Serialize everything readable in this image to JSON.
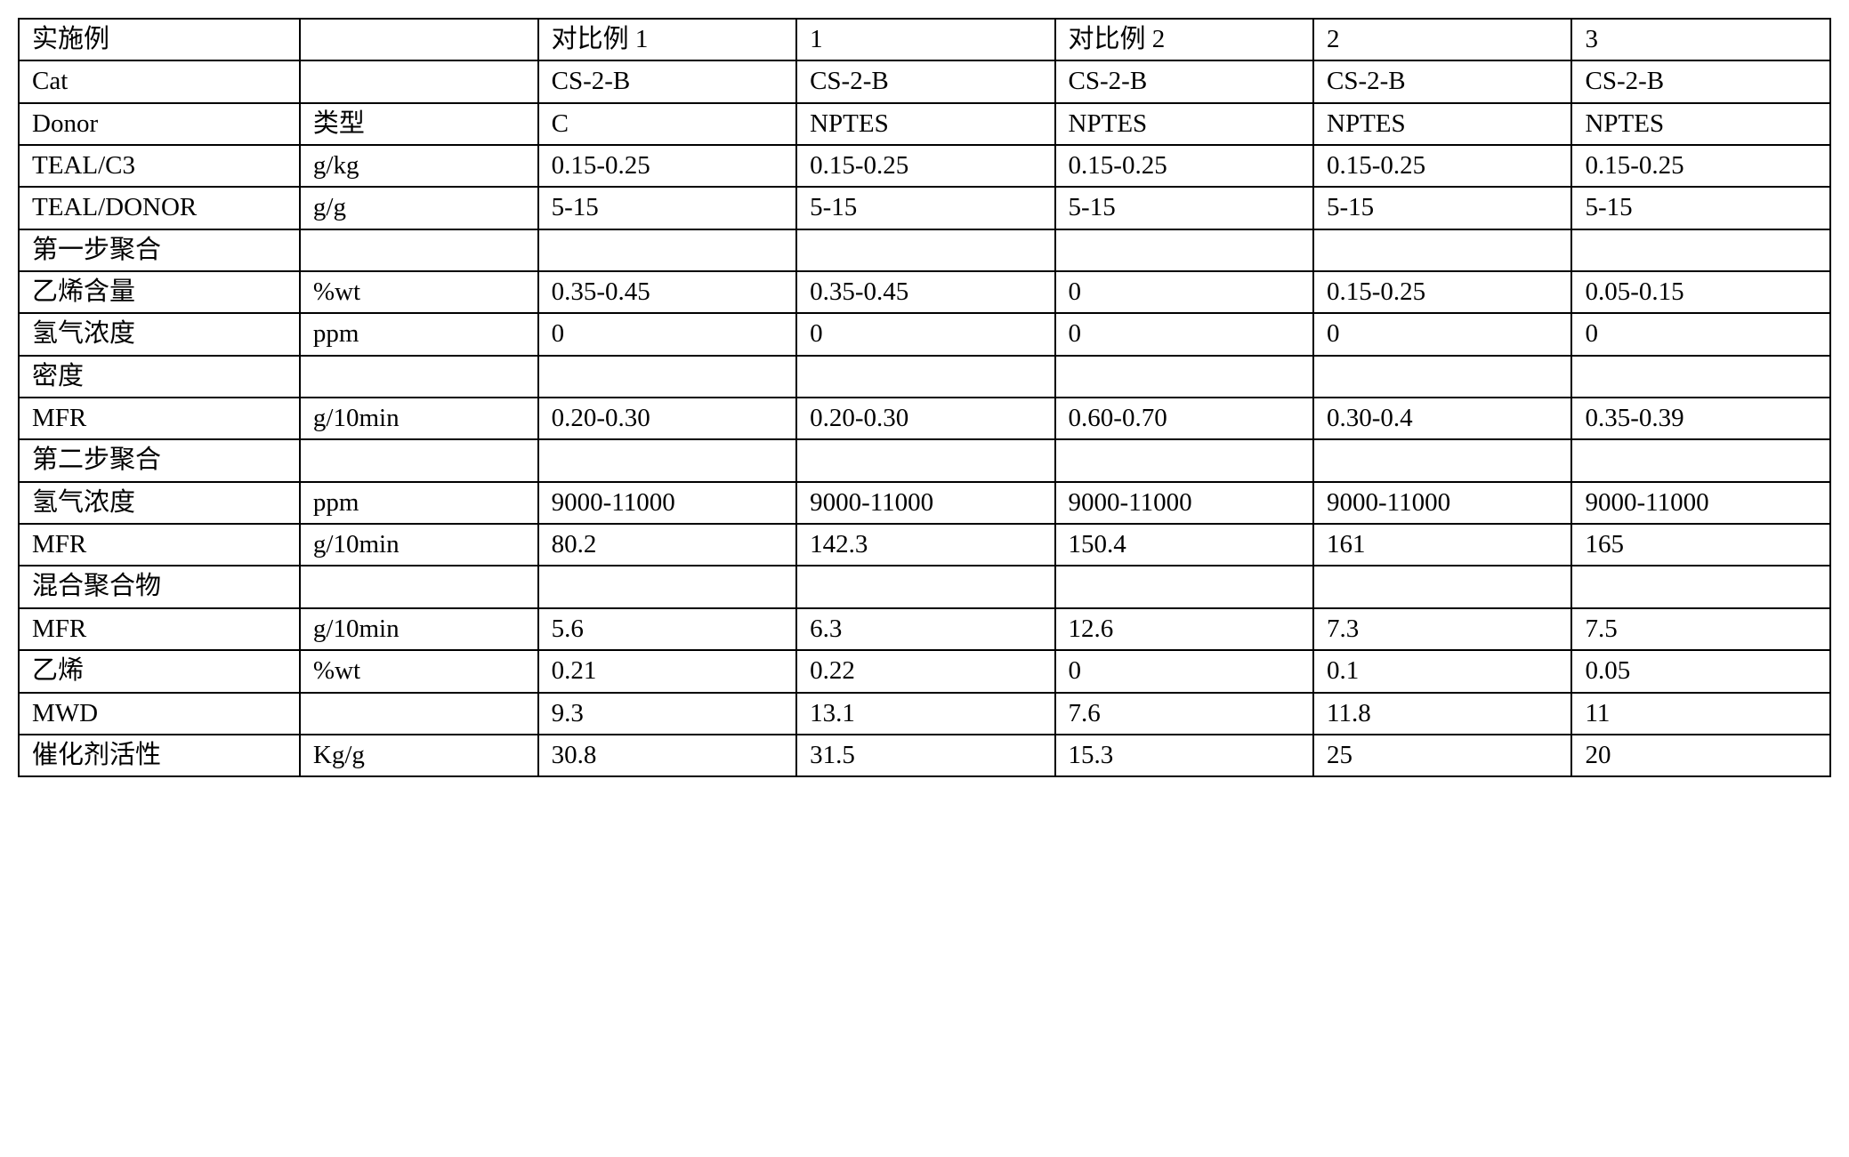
{
  "table": {
    "border_color": "#000000",
    "background_color": "#ffffff",
    "font_color": "#000000",
    "font_size_pt": 22,
    "columns": [
      {
        "key": "label",
        "header": "实施例"
      },
      {
        "key": "unit",
        "header": ""
      },
      {
        "key": "comp1",
        "header": "对比例 1"
      },
      {
        "key": "ex1",
        "header": "1"
      },
      {
        "key": "comp2",
        "header": "对比例 2"
      },
      {
        "key": "ex2",
        "header": "2"
      },
      {
        "key": "ex3",
        "header": "3"
      }
    ],
    "rows": [
      [
        "实施例",
        "",
        "对比例 1",
        "1",
        "对比例 2",
        "2",
        "3"
      ],
      [
        "Cat",
        "",
        "CS-2-B",
        "CS-2-B",
        "CS-2-B",
        "CS-2-B",
        "CS-2-B"
      ],
      [
        "Donor",
        "类型",
        "C",
        "NPTES",
        "NPTES",
        "NPTES",
        "NPTES"
      ],
      [
        "TEAL/C3",
        "g/kg",
        "0.15-0.25",
        "0.15-0.25",
        "0.15-0.25",
        "0.15-0.25",
        "0.15-0.25"
      ],
      [
        "TEAL/DONOR",
        "g/g",
        "5-15",
        "5-15",
        "5-15",
        "5-15",
        "5-15"
      ],
      [
        "第一步聚合",
        "",
        "",
        "",
        "",
        "",
        ""
      ],
      [
        "乙烯含量",
        "%wt",
        "0.35-0.45",
        "0.35-0.45",
        "0",
        "0.15-0.25",
        "0.05-0.15"
      ],
      [
        "氢气浓度",
        "ppm",
        "0",
        "0",
        "0",
        "0",
        "0"
      ],
      [
        "密度",
        "",
        "",
        "",
        "",
        "",
        ""
      ],
      [
        "MFR",
        "g/10min",
        "0.20-0.30",
        "0.20-0.30",
        "0.60-0.70",
        "0.30-0.4",
        "0.35-0.39"
      ],
      [
        "第二步聚合",
        "",
        "",
        "",
        "",
        "",
        ""
      ],
      [
        "氢气浓度",
        "ppm",
        "9000-11000",
        "9000-11000",
        "9000-11000",
        "9000-11000",
        "9000-11000"
      ],
      [
        "MFR",
        "g/10min",
        "80.2",
        "142.3",
        "150.4",
        "161",
        "165"
      ],
      [
        "混合聚合物",
        "",
        "",
        "",
        "",
        "",
        ""
      ],
      [
        "MFR",
        "g/10min",
        "5.6",
        "6.3",
        "12.6",
        "7.3",
        "7.5"
      ],
      [
        "乙烯",
        "%wt",
        "0.21",
        "0.22",
        "0",
        "0.1",
        "0.05"
      ],
      [
        "MWD",
        "",
        "9.3",
        "13.1",
        "7.6",
        "11.8",
        "11"
      ],
      [
        "催化剂活性",
        "Kg/g",
        "30.8",
        "31.5",
        "15.3",
        "25",
        "20"
      ]
    ]
  }
}
